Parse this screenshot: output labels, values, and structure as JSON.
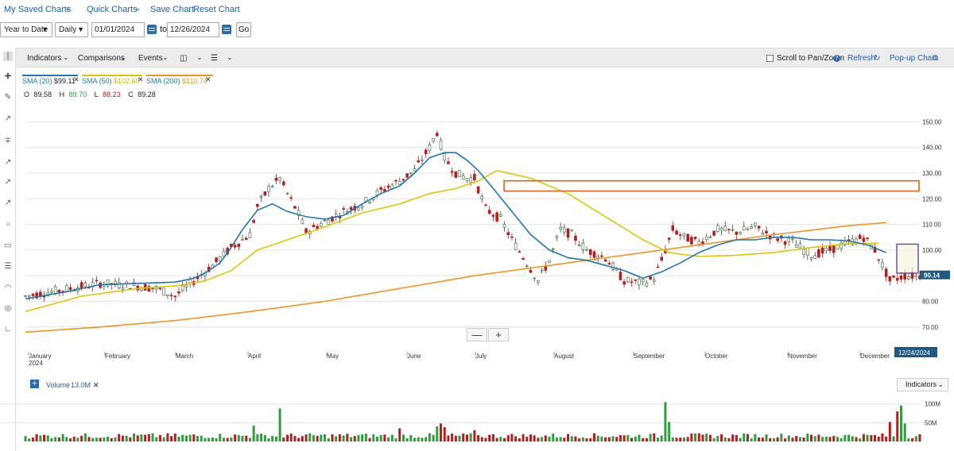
{
  "nav": {
    "saved_charts": "My Saved Charts",
    "quick_charts": "Quick Charts",
    "save_chart": "Save Chart",
    "reset_chart": "Reset Chart"
  },
  "controls": {
    "range": "Year to Date",
    "interval": "Daily",
    "from_date": "01/01/2024",
    "to_label": "to",
    "to_date": "12/26/2024",
    "go": "Go"
  },
  "toolbar": {
    "indicators": "Indicators",
    "comparisons": "Comparisons",
    "events": "Events",
    "scroll_pan": "Scroll to Pan/Zoom",
    "refresh": "Refresh",
    "popup": "Pop-up Chart"
  },
  "legend": {
    "sma20": "SMA (20)",
    "sma20_val": "$99.11",
    "sma50": "SMA (50)",
    "sma50_val": "$102.60",
    "sma200": "SMA (200)",
    "sma200_val": "$110.74"
  },
  "ohlc": {
    "o_label": "O",
    "o": "89.58",
    "h_label": "H",
    "h": "89.70",
    "l_label": "L",
    "l": "88.23",
    "c_label": "C",
    "c": "89.28"
  },
  "volume": {
    "label": "Volume",
    "value": "13.0M",
    "indicators_btn": "Indicators"
  },
  "colors": {
    "up": "#2e9e3c",
    "down": "#b51e1e",
    "sma20": "#1f77b4",
    "sma50": "#e0c600",
    "sma200": "#f0961e",
    "rect_orange": "#e0621a",
    "rect_purple": "#5b4ea0",
    "price_tag": "#1d5a85",
    "accent": "#1a5fb4"
  },
  "chart_data": {
    "type": "candlestick",
    "y_ticks": [
      "150.00",
      "140.00",
      "130.00",
      "120.00",
      "110.00",
      "100.00",
      "90.00",
      "80.00",
      "70.00"
    ],
    "ylim": [
      70,
      155
    ],
    "x_ticks": [
      "January",
      "February",
      "March",
      "April",
      "May",
      "June",
      "July",
      "August",
      "September",
      "October",
      "November",
      "December"
    ],
    "x_tick_sub": "2024",
    "last_price": "90.14",
    "last_date": "12/24/2024",
    "sma20": [
      [
        0,
        81
      ],
      [
        10,
        83.5
      ],
      [
        20,
        86.5
      ],
      [
        30,
        87
      ],
      [
        40,
        87.5
      ],
      [
        45,
        89
      ],
      [
        48,
        91
      ],
      [
        52,
        95
      ],
      [
        55,
        101
      ],
      [
        58,
        108
      ],
      [
        62,
        115.5
      ],
      [
        66,
        118
      ],
      [
        70,
        115
      ],
      [
        75,
        113
      ],
      [
        80,
        112
      ],
      [
        85,
        113.5
      ],
      [
        90,
        118
      ],
      [
        95,
        122
      ],
      [
        100,
        125
      ],
      [
        104,
        130
      ],
      [
        108,
        136
      ],
      [
        112,
        138
      ],
      [
        115,
        138
      ],
      [
        118,
        135
      ],
      [
        121,
        131
      ],
      [
        125,
        124
      ],
      [
        130,
        115
      ],
      [
        135,
        106
      ],
      [
        140,
        100
      ],
      [
        145,
        97
      ],
      [
        150,
        96
      ],
      [
        155,
        94
      ],
      [
        160,
        92
      ],
      [
        165,
        89
      ],
      [
        170,
        91.5
      ],
      [
        175,
        95
      ],
      [
        180,
        99
      ],
      [
        185,
        102
      ],
      [
        190,
        104
      ],
      [
        195,
        104
      ],
      [
        200,
        105
      ],
      [
        205,
        105
      ],
      [
        210,
        104
      ],
      [
        215,
        104
      ],
      [
        220,
        103.5
      ],
      [
        225,
        102
      ],
      [
        230,
        99
      ]
    ],
    "sma50": [
      [
        0,
        76
      ],
      [
        15,
        82
      ],
      [
        30,
        85
      ],
      [
        40,
        86
      ],
      [
        48,
        88
      ],
      [
        55,
        92
      ],
      [
        62,
        100
      ],
      [
        70,
        104
      ],
      [
        80,
        109
      ],
      [
        90,
        114.5
      ],
      [
        100,
        118
      ],
      [
        108,
        122
      ],
      [
        115,
        124
      ],
      [
        121,
        127
      ],
      [
        126,
        131
      ],
      [
        135,
        128
      ],
      [
        145,
        122
      ],
      [
        155,
        113
      ],
      [
        165,
        104
      ],
      [
        172,
        99
      ],
      [
        180,
        97.5
      ],
      [
        190,
        98
      ],
      [
        200,
        99
      ],
      [
        210,
        101
      ],
      [
        220,
        102.5
      ],
      [
        228,
        102.6
      ]
    ],
    "sma200": [
      [
        0,
        68
      ],
      [
        20,
        70
      ],
      [
        40,
        72.5
      ],
      [
        60,
        76
      ],
      [
        80,
        80
      ],
      [
        100,
        85
      ],
      [
        120,
        90
      ],
      [
        140,
        94
      ],
      [
        160,
        98
      ],
      [
        180,
        102
      ],
      [
        200,
        106
      ],
      [
        220,
        109.5
      ],
      [
        230,
        110.7
      ]
    ],
    "volume_ticks": [
      "100M",
      "50M"
    ],
    "volume_max": 110
  }
}
